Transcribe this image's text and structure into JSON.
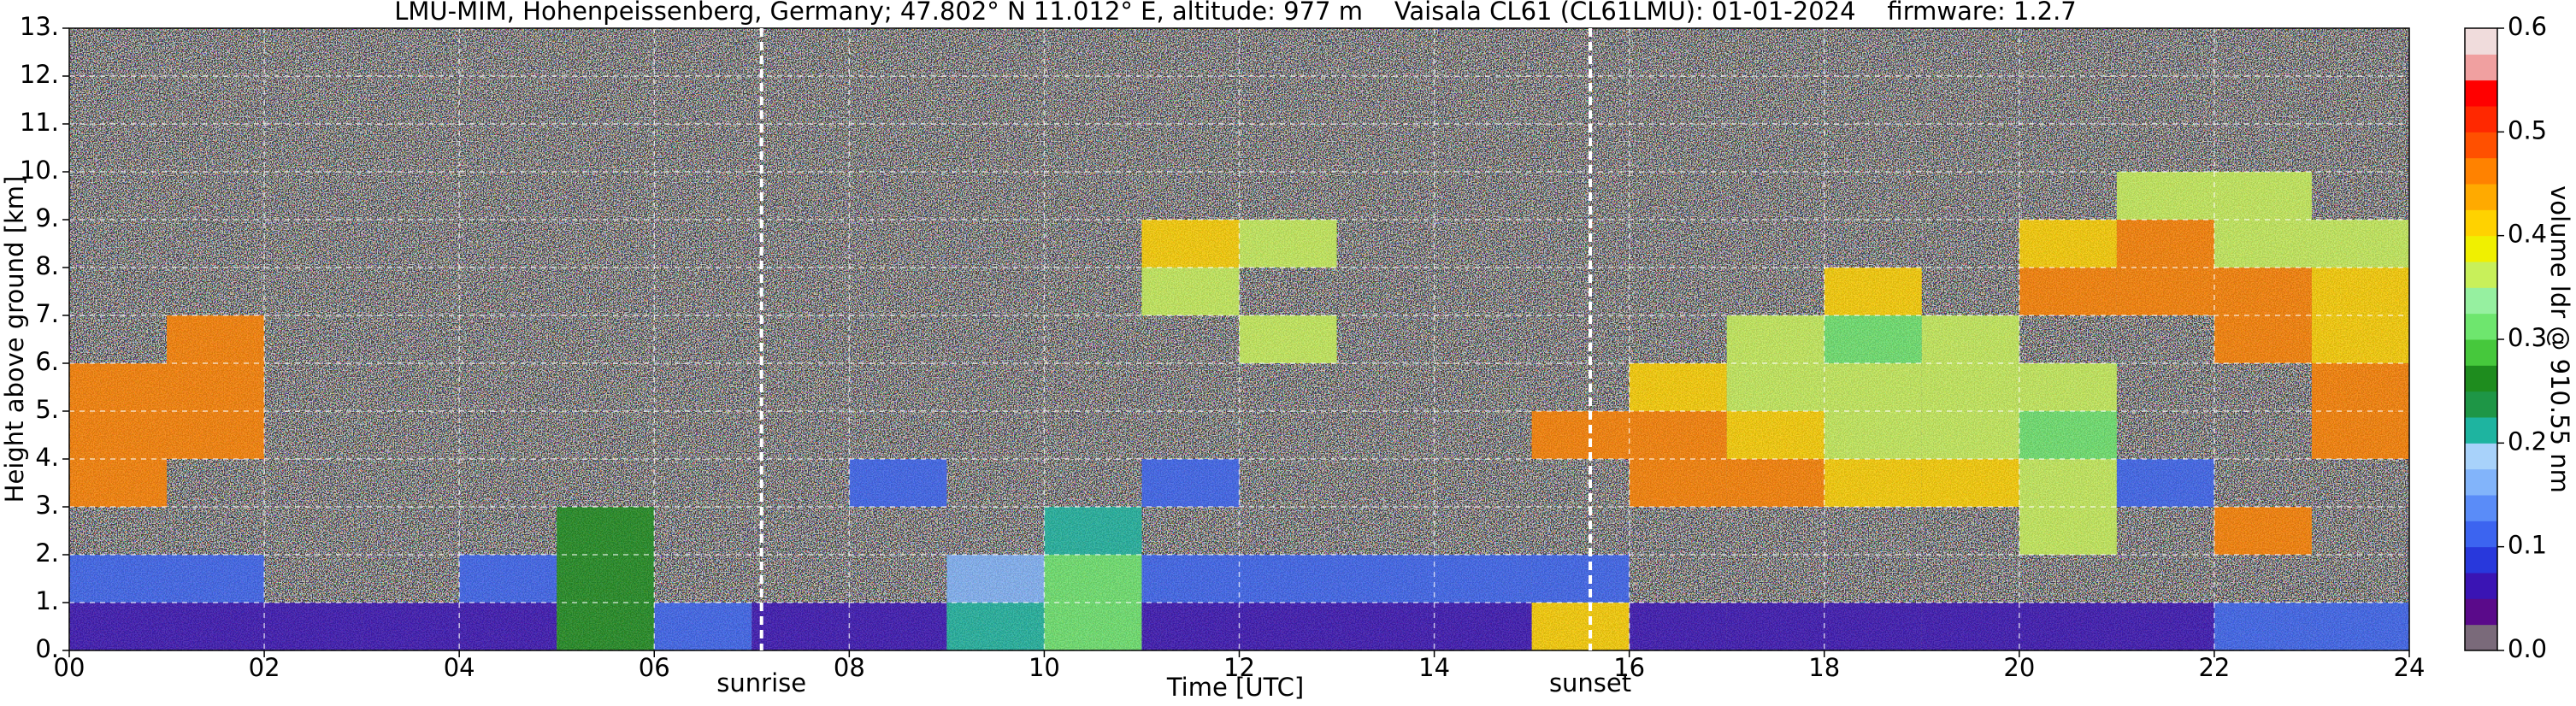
{
  "chart_data": {
    "type": "heatmap",
    "title": "LMU-MIM, Hohenpeissenberg, Germany; 47.802° N 11.012° E, altitude: 977 m    Vaisala CL61 (CL61LMU): 01-01-2024    firmware: 1.2.7",
    "xlabel": "Time [UTC]",
    "ylabel": "Height above ground [km]",
    "xbins": [
      0,
      1,
      2,
      3,
      4,
      5,
      6,
      7,
      8,
      9,
      10,
      11,
      12,
      13,
      14,
      15,
      16,
      17,
      18,
      19,
      20,
      21,
      22,
      23,
      24
    ],
    "ybins": [
      0,
      1,
      2,
      3,
      4,
      5,
      6,
      7,
      8,
      9,
      10,
      11,
      12,
      13
    ],
    "z": [
      [
        0.05,
        0.05,
        0.05,
        0.05,
        0.05,
        0.25,
        0.1,
        0.05,
        0.05,
        0.2,
        0.3,
        0.05,
        0.05,
        0.05,
        0.05,
        0.4,
        0.05,
        0.05,
        0.05,
        0.05,
        0.05,
        0.05,
        0.1,
        0.1
      ],
      [
        0.1,
        0.1,
        null,
        null,
        0.1,
        0.25,
        null,
        null,
        null,
        0.15,
        0.3,
        0.1,
        0.1,
        0.1,
        0.1,
        0.1,
        null,
        null,
        null,
        null,
        null,
        null,
        null,
        null
      ],
      [
        null,
        null,
        null,
        null,
        null,
        0.25,
        null,
        null,
        null,
        null,
        0.2,
        null,
        null,
        null,
        null,
        null,
        null,
        null,
        null,
        null,
        0.35,
        null,
        0.45,
        null
      ],
      [
        0.45,
        null,
        null,
        null,
        null,
        null,
        null,
        null,
        0.1,
        null,
        null,
        0.1,
        null,
        null,
        null,
        null,
        0.45,
        0.45,
        0.4,
        0.4,
        0.35,
        0.1,
        null,
        null
      ],
      [
        0.45,
        0.45,
        null,
        null,
        null,
        null,
        null,
        null,
        null,
        null,
        null,
        null,
        null,
        null,
        null,
        0.45,
        0.45,
        0.4,
        0.35,
        0.35,
        0.3,
        null,
        null,
        0.45
      ],
      [
        0.45,
        0.45,
        null,
        null,
        null,
        null,
        null,
        null,
        null,
        null,
        null,
        null,
        null,
        null,
        null,
        null,
        0.4,
        0.35,
        0.35,
        0.35,
        0.35,
        null,
        null,
        0.45
      ],
      [
        null,
        0.45,
        null,
        null,
        null,
        null,
        null,
        null,
        null,
        null,
        null,
        null,
        0.35,
        null,
        null,
        null,
        null,
        0.35,
        0.3,
        0.35,
        null,
        null,
        0.45,
        0.4
      ],
      [
        null,
        null,
        null,
        null,
        null,
        null,
        null,
        null,
        null,
        null,
        null,
        0.35,
        null,
        null,
        null,
        null,
        null,
        null,
        0.4,
        null,
        0.45,
        0.45,
        0.45,
        0.4
      ],
      [
        null,
        null,
        null,
        null,
        null,
        null,
        null,
        null,
        null,
        null,
        null,
        0.4,
        0.35,
        null,
        null,
        null,
        null,
        null,
        null,
        null,
        0.4,
        0.45,
        0.35,
        0.35
      ],
      [
        null,
        null,
        null,
        null,
        null,
        null,
        null,
        null,
        null,
        null,
        null,
        null,
        null,
        null,
        null,
        null,
        null,
        null,
        null,
        null,
        null,
        0.35,
        0.35,
        null
      ],
      [
        null,
        null,
        null,
        null,
        null,
        null,
        null,
        null,
        null,
        null,
        null,
        null,
        null,
        null,
        null,
        null,
        null,
        null,
        null,
        null,
        null,
        null,
        null,
        null
      ],
      [
        null,
        null,
        null,
        null,
        null,
        null,
        null,
        null,
        null,
        null,
        null,
        null,
        null,
        null,
        null,
        null,
        null,
        null,
        null,
        null,
        null,
        null,
        null,
        null
      ],
      [
        null,
        null,
        null,
        null,
        null,
        null,
        null,
        null,
        null,
        null,
        null,
        null,
        null,
        null,
        null,
        null,
        null,
        null,
        null,
        null,
        null,
        null,
        null,
        null
      ]
    ],
    "xlim": [
      0,
      24
    ],
    "xticks": [
      {
        "value": 0,
        "label": "00"
      },
      {
        "value": 2,
        "label": "02"
      },
      {
        "value": 4,
        "label": "04"
      },
      {
        "value": 6,
        "label": "06"
      },
      {
        "value": 8,
        "label": "08"
      },
      {
        "value": 10,
        "label": "10"
      },
      12,
      14,
      16,
      18,
      20,
      22,
      24
    ],
    "ylim": [
      0,
      13
    ],
    "yticks": [
      {
        "value": 0,
        "label": "0."
      },
      {
        "value": 1,
        "label": "1."
      },
      {
        "value": 2,
        "label": "2."
      },
      {
        "value": 3,
        "label": "3."
      },
      {
        "value": 4,
        "label": "4."
      },
      {
        "value": 5,
        "label": "5."
      },
      {
        "value": 6,
        "label": "6."
      },
      {
        "value": 7,
        "label": "7."
      },
      {
        "value": 8,
        "label": "8."
      },
      {
        "value": 9,
        "label": "9."
      },
      {
        "value": 10,
        "label": "10."
      },
      {
        "value": 11,
        "label": "11."
      },
      {
        "value": 12,
        "label": "12."
      },
      {
        "value": 13,
        "label": "13."
      }
    ],
    "grid": true,
    "annotations": [
      {
        "text": "sunrise",
        "x": 7.1
      },
      {
        "text": "sunset",
        "x": 15.6
      }
    ],
    "colorbar": {
      "label": "volume ldr @ 910.55 nm",
      "lim": [
        0,
        0.6
      ],
      "ticks": [
        {
          "value": 0,
          "label": "0.0"
        },
        0.1,
        0.2,
        0.3,
        0.4,
        0.5,
        0.6
      ],
      "colors": [
        "#7a6a7a",
        "#5a0a8a",
        "#3a14b4",
        "#2838dc",
        "#3c64f0",
        "#5a8cf8",
        "#82b4fa",
        "#a8d2fa",
        "#1eb4a0",
        "#1e9646",
        "#1e8c1e",
        "#46c83c",
        "#6ee66e",
        "#96f0a0",
        "#c8f05a",
        "#f0f000",
        "#ffd200",
        "#ffaa00",
        "#ff8200",
        "#ff5000",
        "#ff2800",
        "#ff0000",
        "#f0a0a0",
        "#f0dcdc"
      ]
    }
  }
}
